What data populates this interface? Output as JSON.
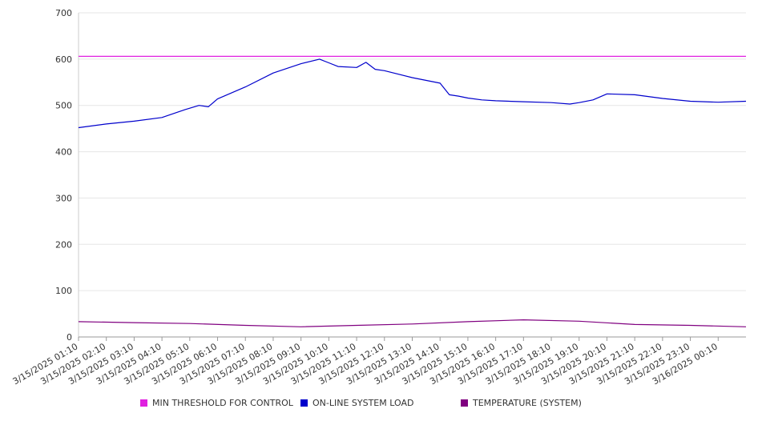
{
  "chart_data": {
    "type": "line",
    "title": "",
    "xlabel": "",
    "ylabel": "",
    "ylim": [
      0,
      700
    ],
    "y_ticks": [
      0,
      100,
      200,
      300,
      400,
      500,
      600,
      700
    ],
    "grid": true,
    "legend_position": "bottom",
    "x_tick_labels": [
      "3/15/2025 01:10",
      "3/15/2025 02:10",
      "3/15/2025 03:10",
      "3/15/2025 04:10",
      "3/15/2025 05:10",
      "3/15/2025 06:10",
      "3/15/2025 07:10",
      "3/15/2025 08:10",
      "3/15/2025 09:10",
      "3/15/2025 10:10",
      "3/15/2025 11:10",
      "3/15/2025 12:10",
      "3/15/2025 13:10",
      "3/15/2025 14:10",
      "3/15/2025 15:10",
      "3/15/2025 16:10",
      "3/15/2025 17:10",
      "3/15/2025 18:10",
      "3/15/2025 19:10",
      "3/15/2025 20:10",
      "3/15/2025 21:10",
      "3/15/2025 22:10",
      "3/15/2025 23:10",
      "3/16/2025 00:10"
    ],
    "series": [
      {
        "name": "MIN THRESHOLD FOR CONTROL",
        "color": "#e020e0",
        "x": [
          "3/15/2025 01:10",
          "3/16/2025 01:10"
        ],
        "values": [
          606,
          606
        ]
      },
      {
        "name": "ON-LINE SYSTEM LOAD",
        "color": "#0000cc",
        "x": [
          "3/15/2025 01:10",
          "3/15/2025 02:10",
          "3/15/2025 03:10",
          "3/15/2025 04:10",
          "3/15/2025 05:00",
          "3/15/2025 05:30",
          "3/15/2025 05:50",
          "3/15/2025 06:10",
          "3/15/2025 07:10",
          "3/15/2025 08:10",
          "3/15/2025 09:10",
          "3/15/2025 09:50",
          "3/15/2025 10:10",
          "3/15/2025 10:30",
          "3/15/2025 11:10",
          "3/15/2025 11:30",
          "3/15/2025 11:50",
          "3/15/2025 12:10",
          "3/15/2025 13:10",
          "3/15/2025 14:10",
          "3/15/2025 14:30",
          "3/15/2025 14:50",
          "3/15/2025 15:10",
          "3/15/2025 15:40",
          "3/15/2025 16:10",
          "3/15/2025 17:10",
          "3/15/2025 18:10",
          "3/15/2025 18:50",
          "3/15/2025 19:10",
          "3/15/2025 19:40",
          "3/15/2025 20:10",
          "3/15/2025 21:10",
          "3/15/2025 22:10",
          "3/15/2025 23:10",
          "3/16/2025 00:10",
          "3/16/2025 01:10"
        ],
        "values": [
          452,
          460,
          466,
          474,
          491,
          500,
          497,
          514,
          540,
          570,
          590,
          600,
          592,
          584,
          582,
          593,
          578,
          575,
          560,
          548,
          523,
          520,
          516,
          512,
          510,
          508,
          506,
          503,
          506,
          512,
          525,
          523,
          515,
          509,
          507,
          509
        ]
      },
      {
        "name": "TEMPERATURE (SYSTEM)",
        "color": "#800080",
        "x": [
          "3/15/2025 01:10",
          "3/15/2025 03:10",
          "3/15/2025 05:10",
          "3/15/2025 07:10",
          "3/15/2025 09:10",
          "3/15/2025 11:10",
          "3/15/2025 13:10",
          "3/15/2025 15:10",
          "3/15/2025 17:10",
          "3/15/2025 19:10",
          "3/15/2025 21:10",
          "3/15/2025 23:10",
          "3/16/2025 01:10"
        ],
        "values": [
          33,
          31,
          29,
          25,
          22,
          25,
          28,
          33,
          37,
          34,
          27,
          25,
          22
        ]
      }
    ]
  }
}
